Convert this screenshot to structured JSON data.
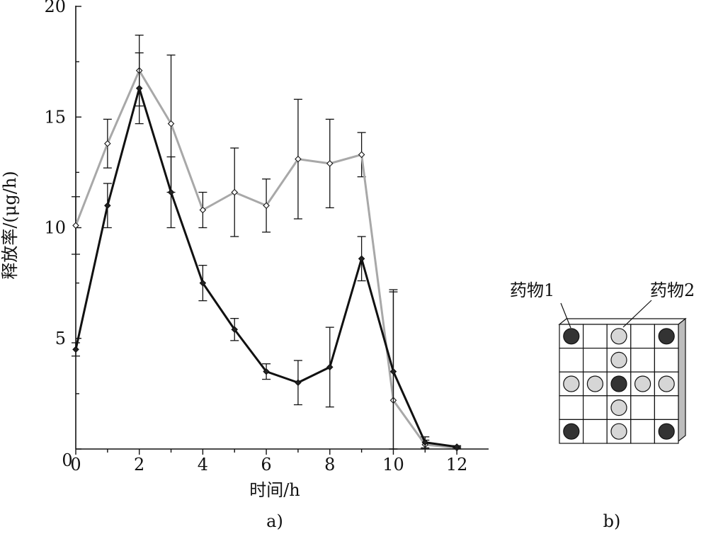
{
  "chart_data": {
    "type": "line",
    "xlabel": "时间/h",
    "ylabel": "释放率/(μg/h)",
    "xlim": [
      0,
      13
    ],
    "ylim": [
      0,
      20
    ],
    "x_ticks": [
      "0",
      "2",
      "4",
      "6",
      "8",
      "10",
      "12"
    ],
    "y_ticks": [
      "5",
      "10",
      "15",
      "20"
    ],
    "grid": false,
    "series": [
      {
        "color": "#111111",
        "x": [
          0,
          1,
          2,
          3,
          4,
          5,
          6,
          7,
          8,
          9,
          10,
          11,
          12
        ],
        "y": [
          4.5,
          11.0,
          16.3,
          11.6,
          7.5,
          5.4,
          3.5,
          3.0,
          3.7,
          8.6,
          3.5,
          0.3,
          0.1
        ],
        "err": [
          0.3,
          1.0,
          1.6,
          1.6,
          0.8,
          0.5,
          0.35,
          1.0,
          1.8,
          1.0,
          3.6,
          0.25,
          0.05
        ]
      },
      {
        "color": "#a8a8a8",
        "x": [
          0,
          1,
          2,
          3,
          4,
          5,
          6,
          7,
          8,
          9,
          10,
          11,
          12
        ],
        "y": [
          10.1,
          13.8,
          17.1,
          14.7,
          10.8,
          11.6,
          11.0,
          13.1,
          12.9,
          13.3,
          2.2,
          0.2,
          0.05
        ],
        "err": [
          1.3,
          1.1,
          1.6,
          3.1,
          0.8,
          2.0,
          1.2,
          2.7,
          2.0,
          1.0,
          5.0,
          0.2,
          0.05
        ]
      }
    ]
  },
  "panel_a_label": "a)",
  "panel_b_label": "b)",
  "legend": {
    "drug1": "药物1",
    "drug2": "药物2",
    "drug1_color": "#333333",
    "drug2_color": "#d6d6d6",
    "grid_rows": [
      [
        "drug1",
        "",
        "drug2",
        "",
        "drug1"
      ],
      [
        "",
        "",
        "drug2",
        "",
        ""
      ],
      [
        "drug2",
        "drug2",
        "drug1",
        "drug2",
        "drug2"
      ],
      [
        "",
        "",
        "drug2",
        "",
        ""
      ],
      [
        "drug1",
        "",
        "drug2",
        "",
        "drug1"
      ]
    ]
  }
}
